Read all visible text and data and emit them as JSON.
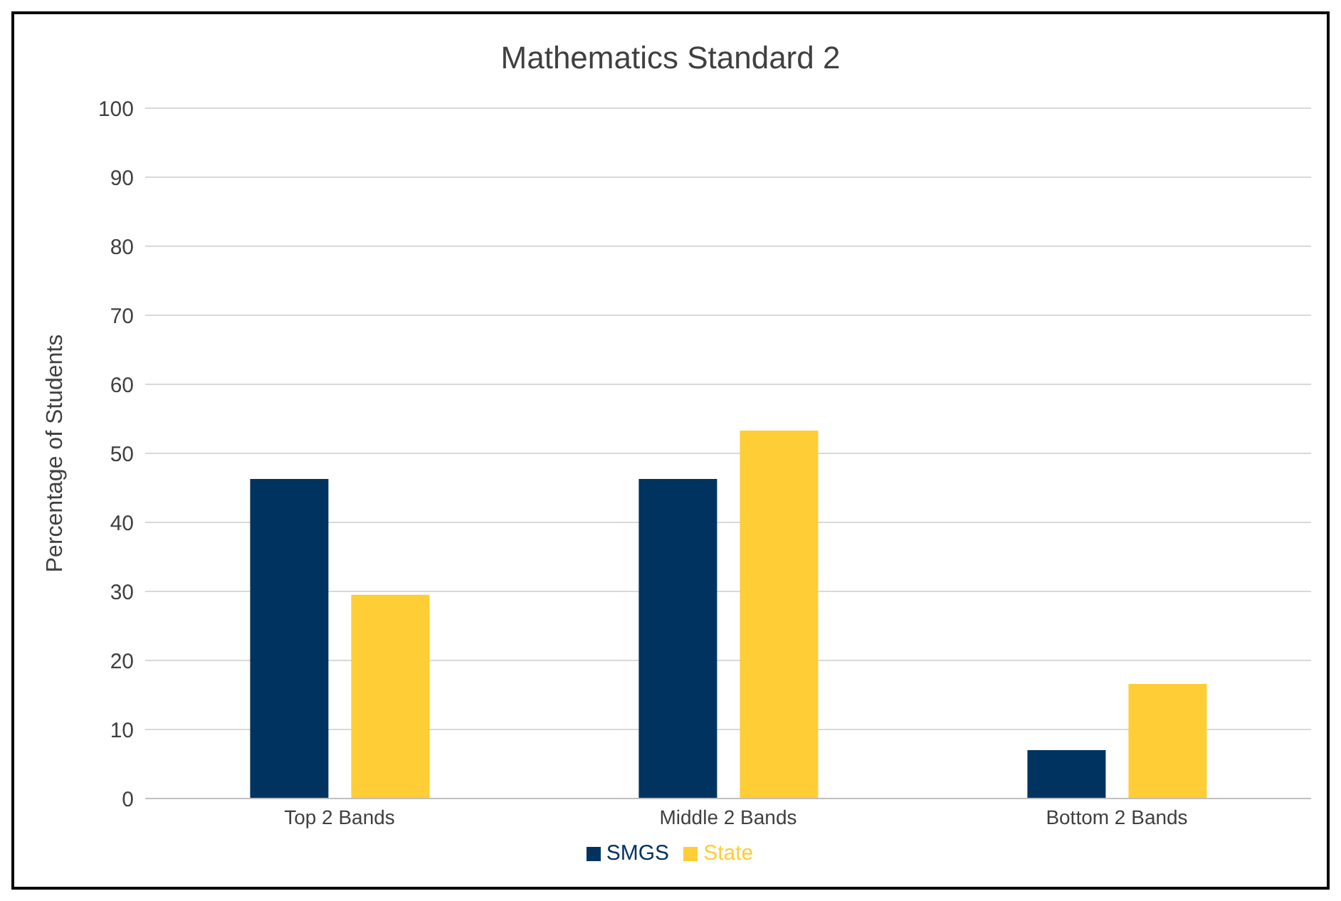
{
  "chart_data": {
    "type": "bar",
    "title": "Mathematics Standard 2",
    "ylabel": "Percentage of Students",
    "categories": [
      "Top 2 Bands",
      "Middle 2 Bands",
      "Bottom 2 Bands"
    ],
    "series": [
      {
        "name": "SMGS",
        "color": "#003360",
        "values": [
          46.3,
          46.3,
          7.0
        ]
      },
      {
        "name": "State",
        "color": "#ffcd35",
        "values": [
          29.5,
          53.3,
          16.6
        ]
      }
    ],
    "ylim": [
      0,
      100
    ],
    "yticks": [
      0,
      10,
      20,
      30,
      40,
      50,
      60,
      70,
      80,
      90,
      100
    ],
    "grid": "y",
    "legend": "bottom"
  }
}
